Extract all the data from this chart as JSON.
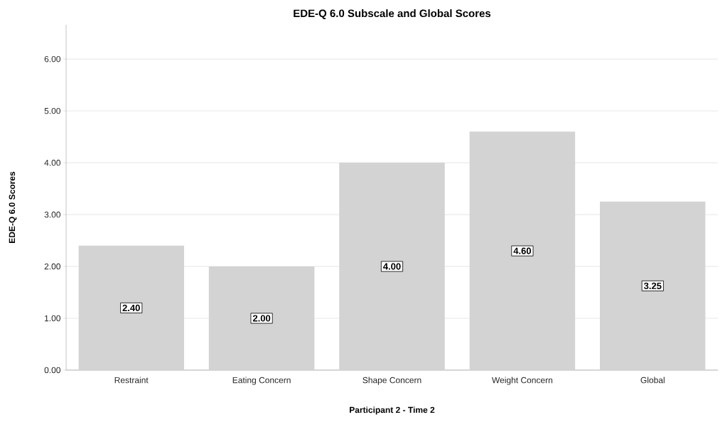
{
  "chart_data": {
    "type": "bar",
    "title": "EDE-Q 6.0 Subscale and Global Scores",
    "xlabel": "Participant 2 - Time 2",
    "ylabel": "EDE-Q 6.0 Scores",
    "categories": [
      "Restraint",
      "Eating Concern",
      "Shape Concern",
      "Weight Concern",
      "Global"
    ],
    "values": [
      2.4,
      2.0,
      4.0,
      4.6,
      3.25
    ],
    "value_labels": [
      "2.40",
      "2.00",
      "4.00",
      "4.60",
      "3.25"
    ],
    "color": "#d3d3d3",
    "ylim": [
      0,
      6.66
    ],
    "yticks": [
      {
        "value": 0,
        "label": "0.00"
      },
      {
        "value": 1,
        "label": "1.00"
      },
      {
        "value": 2,
        "label": "2.00"
      },
      {
        "value": 3,
        "label": "3.00"
      },
      {
        "value": 4,
        "label": "4.00"
      },
      {
        "value": 5,
        "label": "5.00"
      },
      {
        "value": 6,
        "label": "6.00"
      }
    ],
    "grid": "y"
  }
}
